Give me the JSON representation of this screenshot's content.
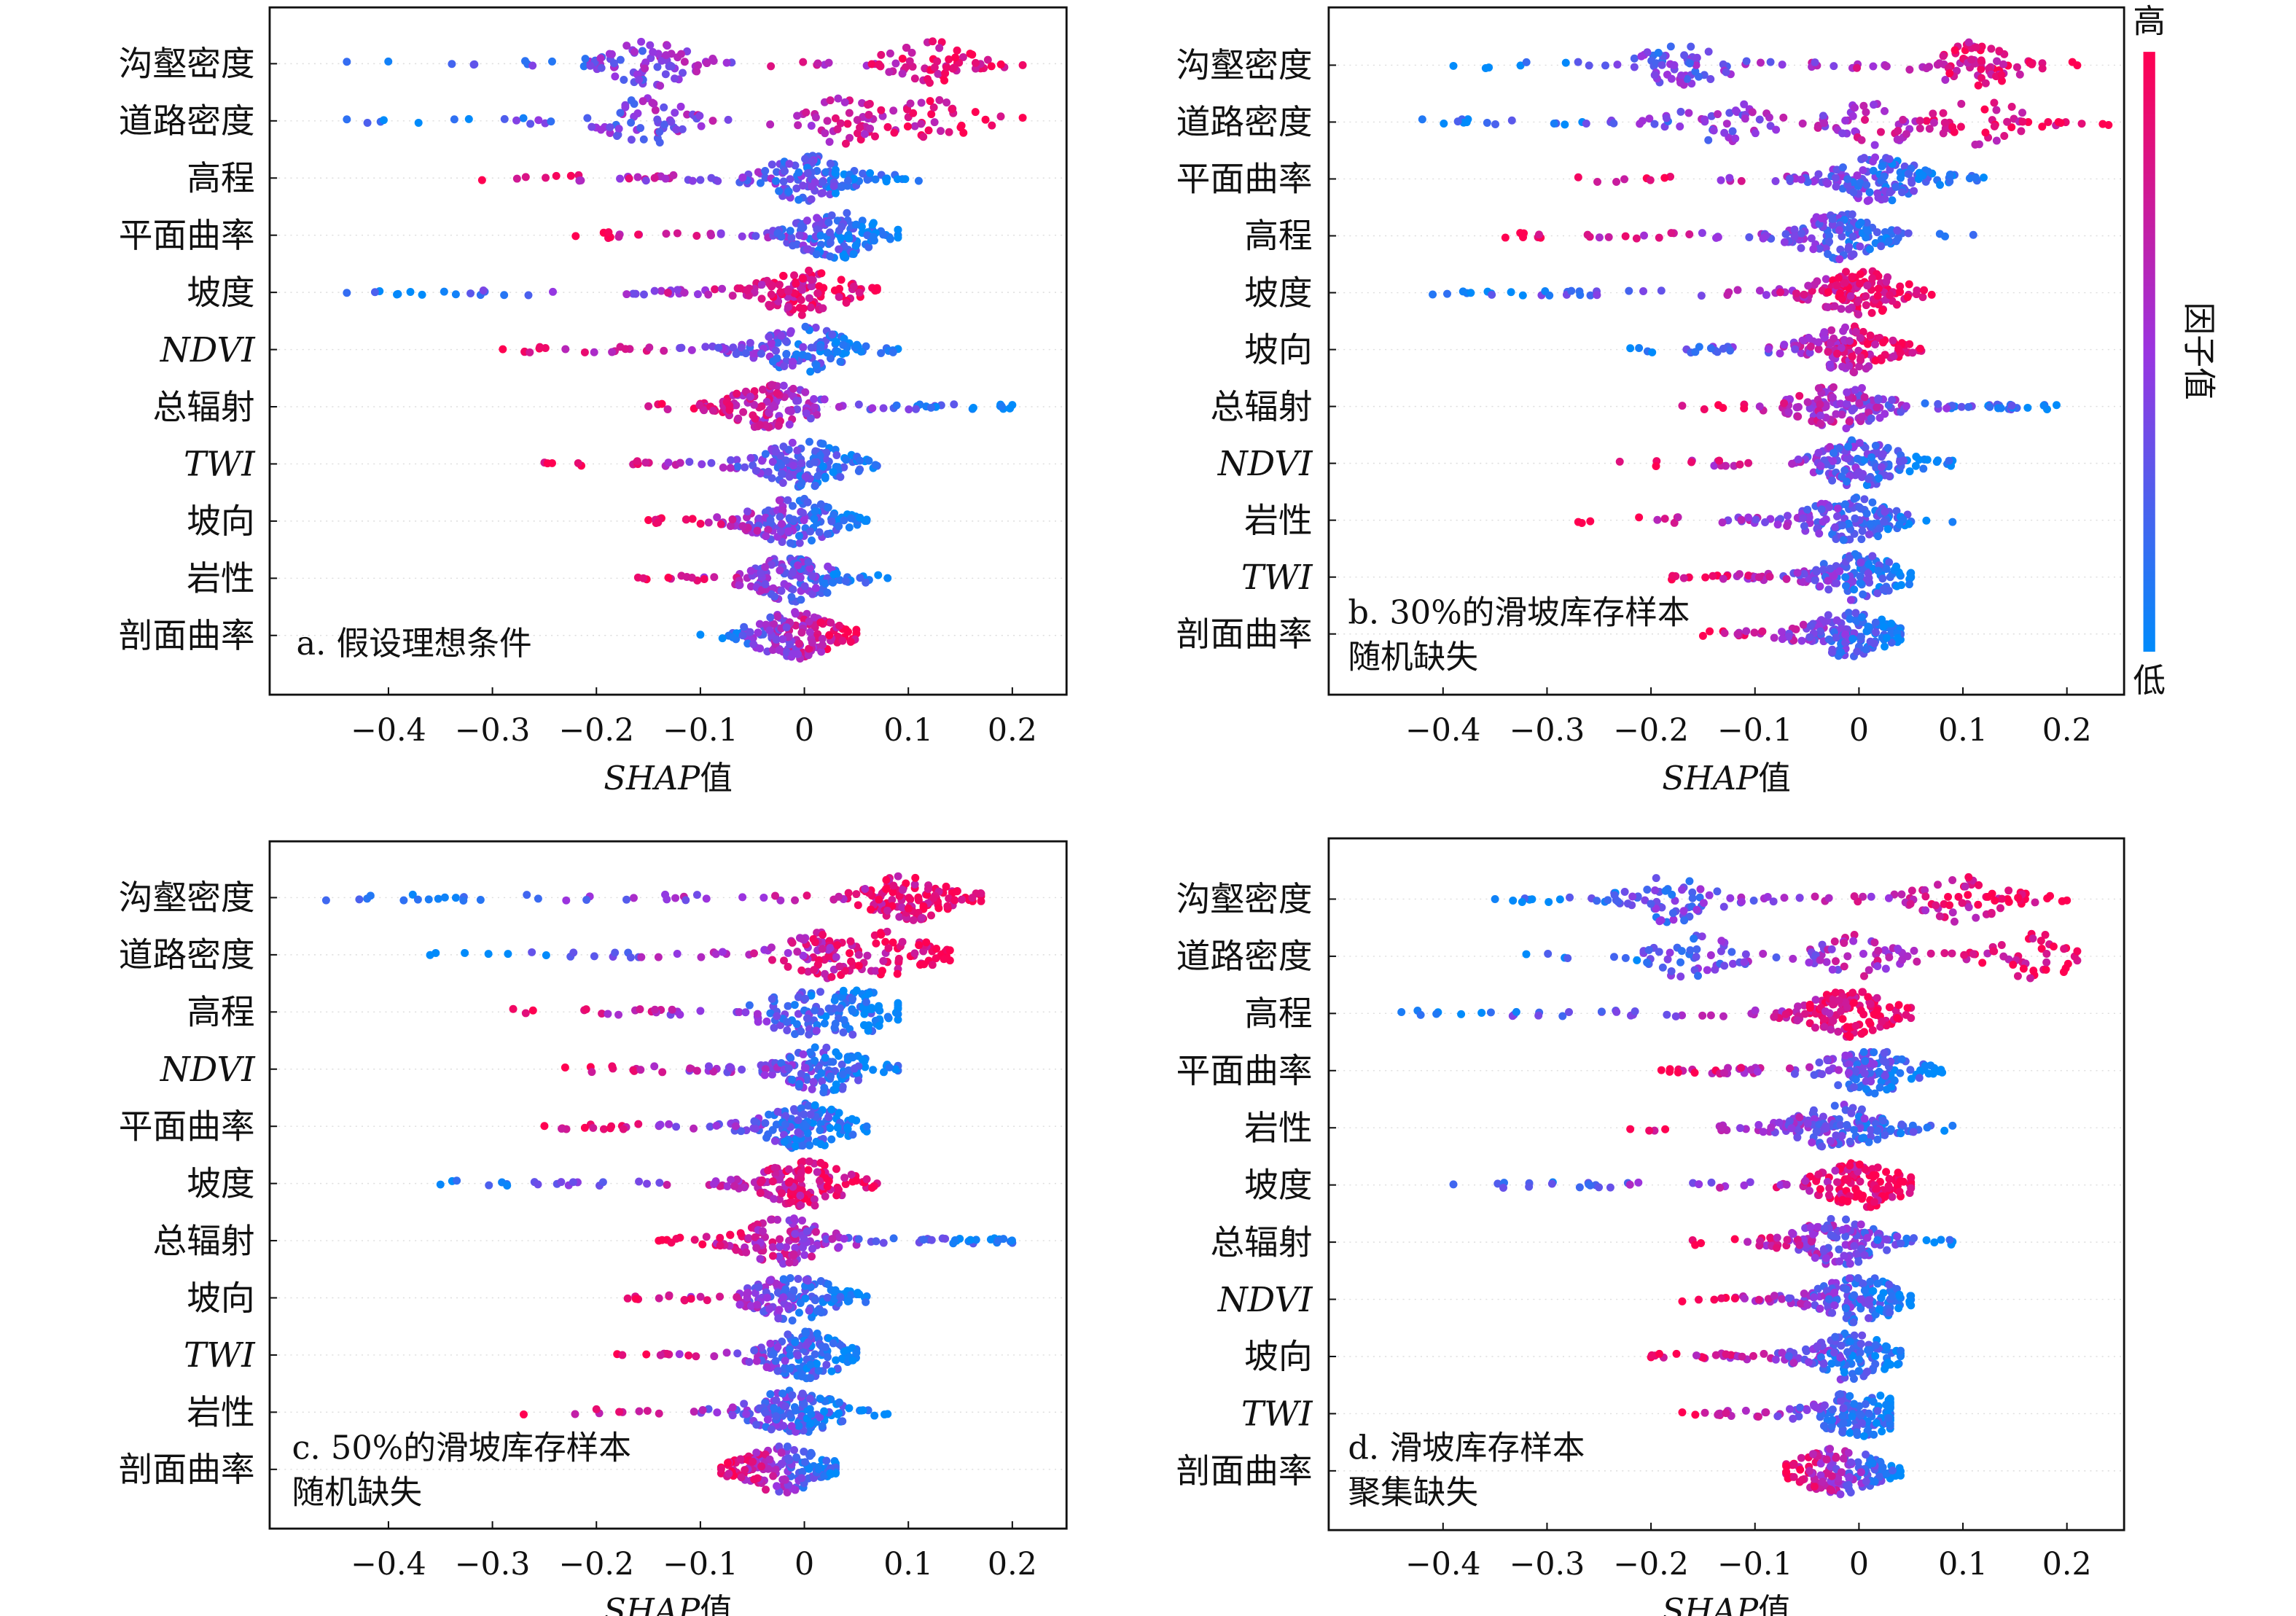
{
  "colors": {
    "low": "#008bfb",
    "mid": "#9a34e0",
    "high": "#ff0051"
  },
  "colorbar": {
    "high_label": "高",
    "low_label": "低",
    "title": "因子值"
  },
  "chart_data": [
    {
      "type": "scatter",
      "subtype": "shap-beeswarm",
      "annotation": [
        "a. 假设理想条件"
      ],
      "xlabel_italic": "SHAP",
      "xlabel_suffix": "值",
      "xticks": [
        -0.4,
        -0.3,
        -0.2,
        -0.1,
        0,
        0.1,
        0.2
      ],
      "xtick_labels": [
        "−0.4",
        "−0.3",
        "−0.2",
        "−0.1",
        "0",
        "0.1",
        "0.2"
      ],
      "features": [
        {
          "name": "沟壑密度",
          "italic": false,
          "min": -0.44,
          "max": 0.21,
          "peaks": [
            -0.15,
            0.12
          ],
          "high_side": "right"
        },
        {
          "name": "道路密度",
          "italic": false,
          "min": -0.44,
          "max": 0.21,
          "peaks": [
            -0.15,
            0.04,
            0.12
          ],
          "high_side": "right"
        },
        {
          "name": "高程",
          "italic": false,
          "min": -0.31,
          "max": 0.11,
          "peaks": [
            0.0
          ],
          "high_side": "left"
        },
        {
          "name": "平面曲率",
          "italic": false,
          "min": -0.22,
          "max": 0.09,
          "peaks": [
            0.03
          ],
          "high_side": "left"
        },
        {
          "name": "坡度",
          "italic": false,
          "min": -0.44,
          "max": 0.07,
          "peaks": [
            0.0
          ],
          "high_side": "right"
        },
        {
          "name": "NDVI",
          "italic": true,
          "min": -0.29,
          "max": 0.09,
          "peaks": [
            0.0
          ],
          "high_side": "left"
        },
        {
          "name": "总辐射",
          "italic": false,
          "min": -0.15,
          "max": 0.2,
          "peaks": [
            -0.03
          ],
          "high_side": "left"
        },
        {
          "name": "TWI",
          "italic": true,
          "min": -0.25,
          "max": 0.07,
          "peaks": [
            0.0
          ],
          "high_side": "left"
        },
        {
          "name": "坡向",
          "italic": false,
          "min": -0.15,
          "max": 0.06,
          "peaks": [
            -0.01
          ],
          "high_side": "left"
        },
        {
          "name": "岩性",
          "italic": false,
          "min": -0.16,
          "max": 0.08,
          "peaks": [
            -0.01
          ],
          "high_side": "left"
        },
        {
          "name": "剖面曲率",
          "italic": false,
          "min": -0.1,
          "max": 0.05,
          "peaks": [
            -0.01
          ],
          "high_side": "right"
        }
      ]
    },
    {
      "type": "scatter",
      "subtype": "shap-beeswarm",
      "annotation": [
        "b. 30%的滑坡库存样本",
        "随机缺失"
      ],
      "xlabel_italic": "SHAP",
      "xlabel_suffix": "值",
      "xticks": [
        -0.4,
        -0.3,
        -0.2,
        -0.1,
        0,
        0.1,
        0.2
      ],
      "xtick_labels": [
        "−0.4",
        "−0.3",
        "−0.2",
        "−0.1",
        "0",
        "0.1",
        "0.2"
      ],
      "features": [
        {
          "name": "沟壑密度",
          "italic": false,
          "min": -0.39,
          "max": 0.21,
          "peaks": [
            -0.17,
            0.11
          ],
          "high_side": "right"
        },
        {
          "name": "道路密度",
          "italic": false,
          "min": -0.42,
          "max": 0.24,
          "peaks": [
            -0.13,
            0.02,
            0.12
          ],
          "high_side": "right"
        },
        {
          "name": "平面曲率",
          "italic": false,
          "min": -0.27,
          "max": 0.12,
          "peaks": [
            0.02
          ],
          "high_side": "left"
        },
        {
          "name": "高程",
          "italic": false,
          "min": -0.34,
          "max": 0.11,
          "peaks": [
            -0.02
          ],
          "high_side": "left"
        },
        {
          "name": "坡度",
          "italic": false,
          "min": -0.41,
          "max": 0.07,
          "peaks": [
            0.0
          ],
          "high_side": "right"
        },
        {
          "name": "坡向",
          "italic": false,
          "min": -0.22,
          "max": 0.06,
          "peaks": [
            -0.01
          ],
          "high_side": "right"
        },
        {
          "name": "总辐射",
          "italic": false,
          "min": -0.17,
          "max": 0.19,
          "peaks": [
            -0.02
          ],
          "high_side": "left"
        },
        {
          "name": "NDVI",
          "italic": true,
          "min": -0.23,
          "max": 0.09,
          "peaks": [
            0.0
          ],
          "high_side": "left"
        },
        {
          "name": "岩性",
          "italic": false,
          "min": -0.27,
          "max": 0.09,
          "peaks": [
            -0.01
          ],
          "high_side": "left"
        },
        {
          "name": "TWI",
          "italic": true,
          "min": -0.18,
          "max": 0.05,
          "peaks": [
            0.0
          ],
          "high_side": "left"
        },
        {
          "name": "剖面曲率",
          "italic": false,
          "min": -0.15,
          "max": 0.04,
          "peaks": [
            -0.01
          ],
          "high_side": "left"
        }
      ]
    },
    {
      "type": "scatter",
      "subtype": "shap-beeswarm",
      "annotation": [
        "c. 50%的滑坡库存样本",
        "随机缺失"
      ],
      "xlabel_italic": "SHAP",
      "xlabel_suffix": "值",
      "xticks": [
        -0.4,
        -0.3,
        -0.2,
        -0.1,
        0,
        0.1,
        0.2
      ],
      "xtick_labels": [
        "−0.4",
        "−0.3",
        "−0.2",
        "−0.1",
        "0",
        "0.1",
        "0.2"
      ],
      "features": [
        {
          "name": "沟壑密度",
          "italic": false,
          "min": -0.46,
          "max": 0.17,
          "peaks": [
            0.1
          ],
          "high_side": "right"
        },
        {
          "name": "道路密度",
          "italic": false,
          "min": -0.36,
          "max": 0.14,
          "peaks": [
            0.02,
            0.08
          ],
          "high_side": "right"
        },
        {
          "name": "高程",
          "italic": false,
          "min": -0.28,
          "max": 0.09,
          "peaks": [
            0.0,
            0.05
          ],
          "high_side": "left"
        },
        {
          "name": "NDVI",
          "italic": true,
          "min": -0.23,
          "max": 0.09,
          "peaks": [
            0.02
          ],
          "high_side": "left"
        },
        {
          "name": "平面曲率",
          "italic": false,
          "min": -0.25,
          "max": 0.06,
          "peaks": [
            0.0
          ],
          "high_side": "left"
        },
        {
          "name": "坡度",
          "italic": false,
          "min": -0.35,
          "max": 0.07,
          "peaks": [
            0.0
          ],
          "high_side": "right"
        },
        {
          "name": "总辐射",
          "italic": false,
          "min": -0.14,
          "max": 0.2,
          "peaks": [
            -0.02
          ],
          "high_side": "left"
        },
        {
          "name": "坡向",
          "italic": false,
          "min": -0.17,
          "max": 0.06,
          "peaks": [
            -0.01
          ],
          "high_side": "left"
        },
        {
          "name": "TWI",
          "italic": true,
          "min": -0.18,
          "max": 0.05,
          "peaks": [
            0.0
          ],
          "high_side": "left"
        },
        {
          "name": "岩性",
          "italic": false,
          "min": -0.27,
          "max": 0.08,
          "peaks": [
            -0.01
          ],
          "high_side": "left"
        },
        {
          "name": "剖面曲率",
          "italic": false,
          "min": -0.08,
          "max": 0.03,
          "peaks": [
            -0.02
          ],
          "high_side": "left"
        }
      ]
    },
    {
      "type": "scatter",
      "subtype": "shap-beeswarm",
      "annotation": [
        "d. 滑坡库存样本",
        "聚集缺失"
      ],
      "xlabel_italic": "SHAP",
      "xlabel_suffix": "值",
      "xticks": [
        -0.4,
        -0.3,
        -0.2,
        -0.1,
        0,
        0.1,
        0.2
      ],
      "xtick_labels": [
        "−0.4",
        "−0.3",
        "−0.2",
        "−0.1",
        "0",
        "0.1",
        "0.2"
      ],
      "features": [
        {
          "name": "沟壑密度",
          "italic": false,
          "min": -0.35,
          "max": 0.2,
          "peaks": [
            -0.18,
            0.1
          ],
          "high_side": "right"
        },
        {
          "name": "道路密度",
          "italic": false,
          "min": -0.32,
          "max": 0.21,
          "peaks": [
            -0.16,
            0.0,
            0.17
          ],
          "high_side": "right"
        },
        {
          "name": "高程",
          "italic": false,
          "min": -0.44,
          "max": 0.05,
          "peaks": [
            -0.01
          ],
          "high_side": "right"
        },
        {
          "name": "平面曲率",
          "italic": false,
          "min": -0.19,
          "max": 0.08,
          "peaks": [
            0.01
          ],
          "high_side": "left"
        },
        {
          "name": "岩性",
          "italic": false,
          "min": -0.22,
          "max": 0.09,
          "peaks": [
            -0.02
          ],
          "high_side": "left"
        },
        {
          "name": "坡度",
          "italic": false,
          "min": -0.39,
          "max": 0.05,
          "peaks": [
            0.0
          ],
          "high_side": "right"
        },
        {
          "name": "总辐射",
          "italic": false,
          "min": -0.16,
          "max": 0.09,
          "peaks": [
            -0.02
          ],
          "high_side": "left"
        },
        {
          "name": "NDVI",
          "italic": true,
          "min": -0.17,
          "max": 0.05,
          "peaks": [
            0.0
          ],
          "high_side": "left"
        },
        {
          "name": "坡向",
          "italic": false,
          "min": -0.2,
          "max": 0.04,
          "peaks": [
            -0.01
          ],
          "high_side": "left"
        },
        {
          "name": "TWI",
          "italic": true,
          "min": -0.17,
          "max": 0.03,
          "peaks": [
            0.0
          ],
          "high_side": "left"
        },
        {
          "name": "剖面曲率",
          "italic": false,
          "min": -0.07,
          "max": 0.04,
          "peaks": [
            -0.02
          ],
          "high_side": "left"
        }
      ]
    }
  ]
}
